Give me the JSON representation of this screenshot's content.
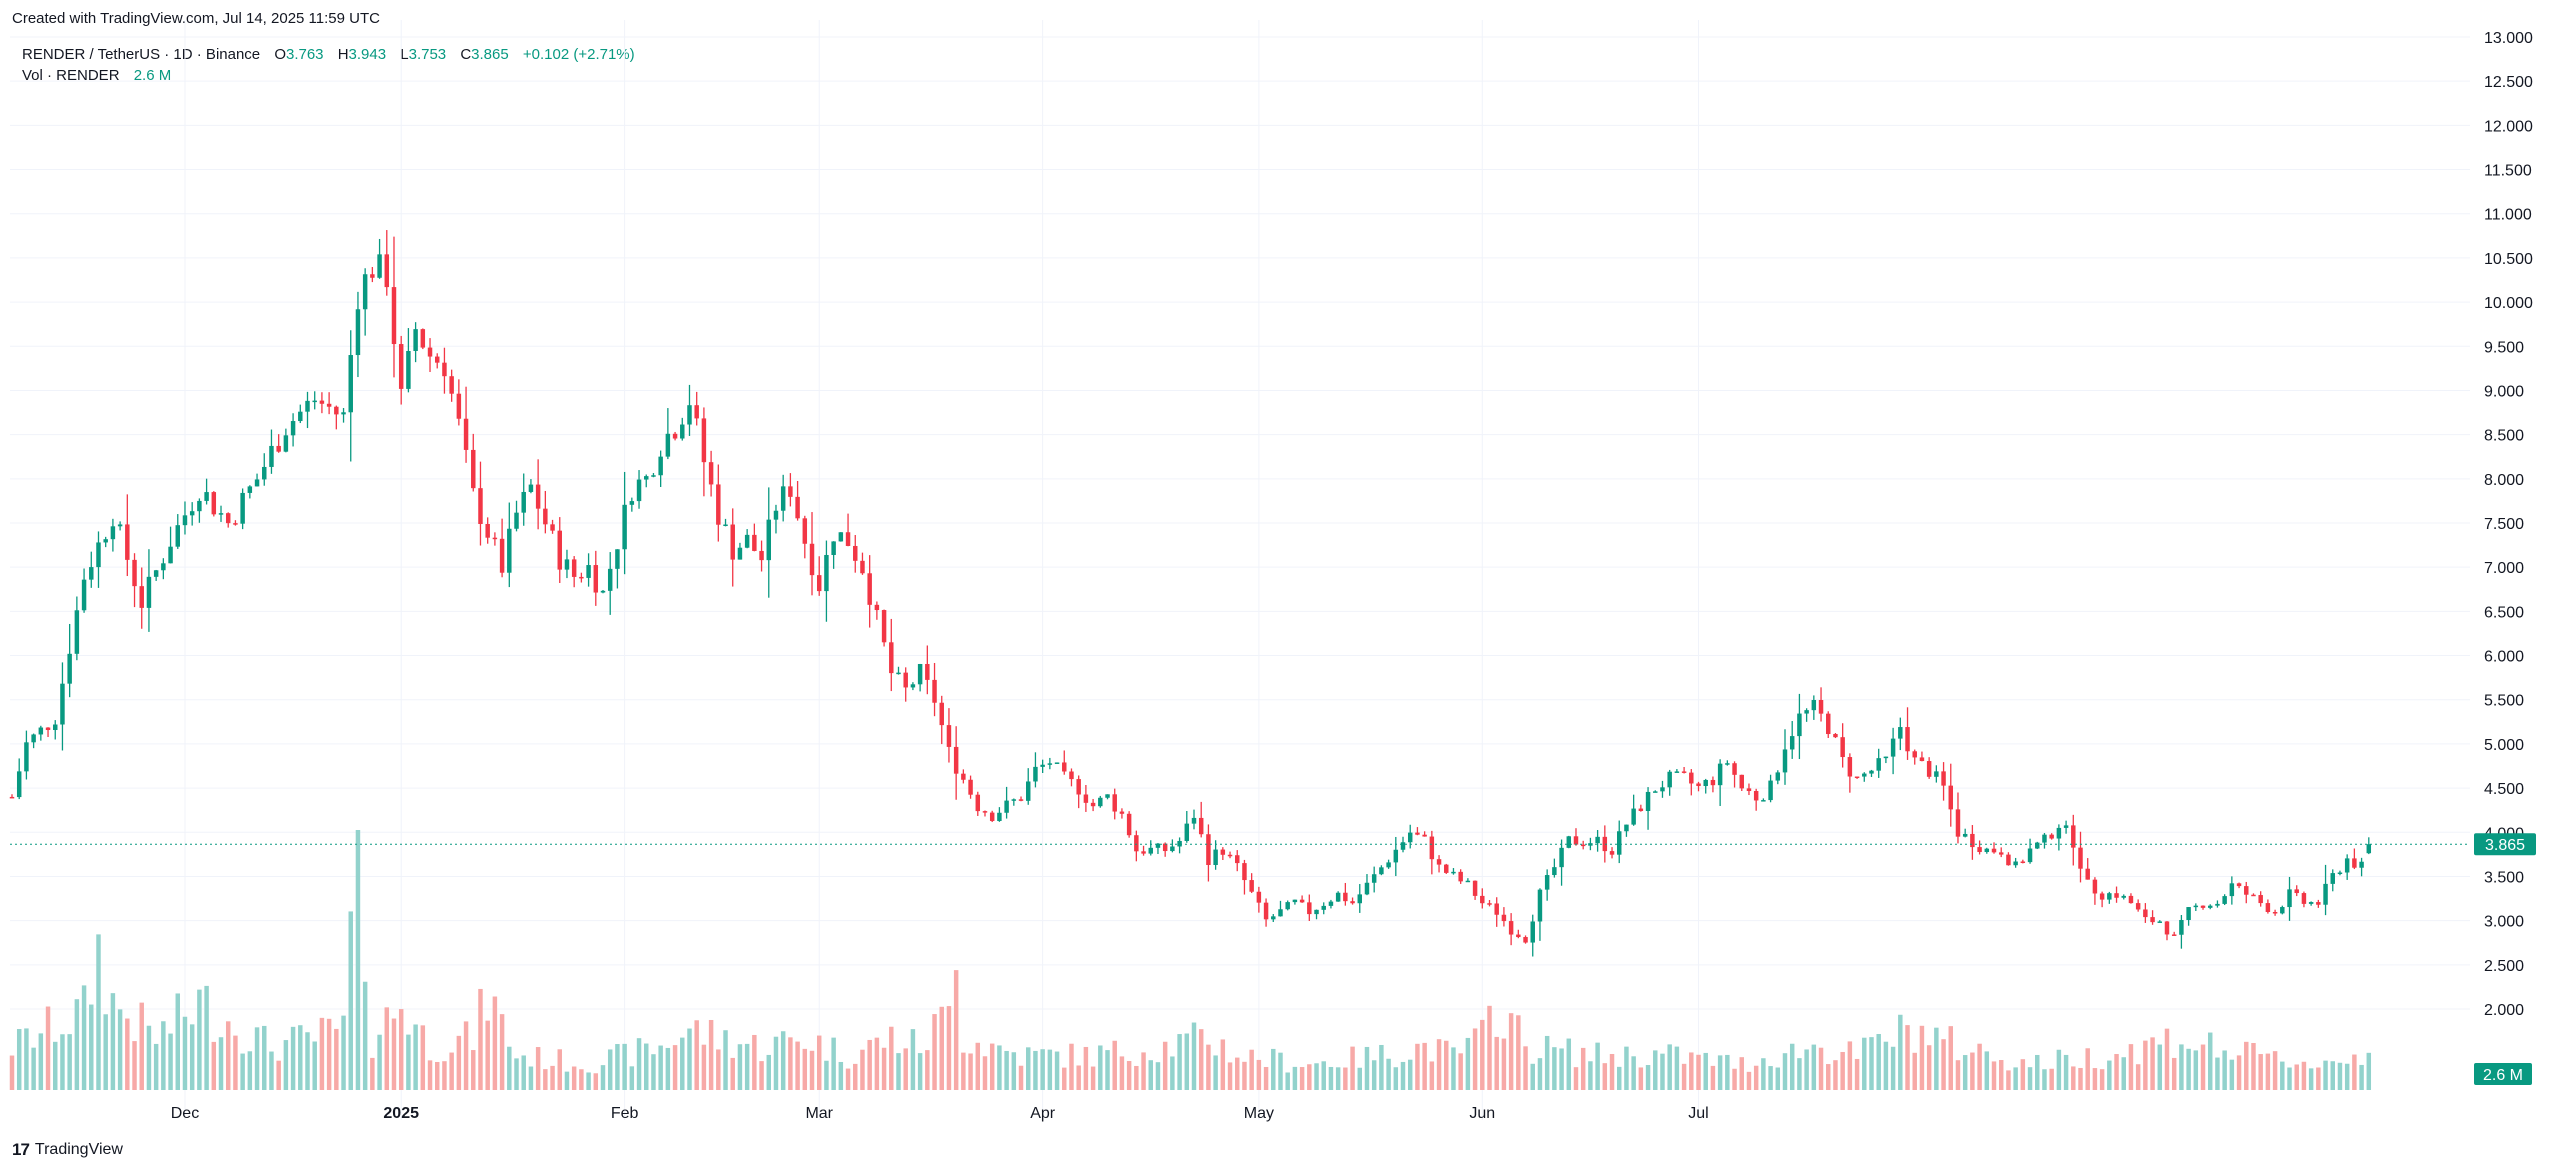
{
  "header": {
    "created_text": "Created with TradingView.com, Jul 14, 2025 11:59 UTC"
  },
  "legend": {
    "symbol": "RENDER / TetherUS · 1D · Binance",
    "o_label": "O",
    "o_value": "3.763",
    "h_label": "H",
    "h_value": "3.943",
    "l_label": "L",
    "l_value": "3.753",
    "c_label": "C",
    "c_value": "3.865",
    "change": "+0.102 (+2.71%)",
    "vol_label": "Vol · RENDER",
    "vol_value": "2.6 M"
  },
  "footer": {
    "brand": "TradingView"
  },
  "colors": {
    "up": "#089981",
    "down": "#f23645",
    "vol_up": "#92d2cc",
    "vol_down": "#f7a9a7",
    "grid": "#f0f3fa"
  },
  "chart_data": {
    "type": "candlestick",
    "x_tick_labels": [
      "Dec",
      "2025",
      "Feb",
      "Mar",
      "Apr",
      "May",
      "Jun",
      "Jul"
    ],
    "y_tick_labels": [
      "13.000",
      "12.500",
      "12.000",
      "11.500",
      "11.000",
      "10.500",
      "10.000",
      "9.500",
      "9.000",
      "8.500",
      "8.000",
      "7.500",
      "7.000",
      "6.500",
      "6.000",
      "5.500",
      "5.000",
      "4.500",
      "4.000",
      "3.500",
      "3.000",
      "2.500",
      "2.000"
    ],
    "ylim": [
      1.6,
      13.0
    ],
    "last_price_label": "3.865",
    "last_volume_label": "2.6 M",
    "close_path": [
      [
        0,
        4.4
      ],
      [
        2,
        5.0
      ],
      [
        6,
        5.3
      ],
      [
        10,
        6.9
      ],
      [
        14,
        7.6
      ],
      [
        18,
        6.6
      ],
      [
        22,
        7.3
      ],
      [
        26,
        7.9
      ],
      [
        30,
        7.5
      ],
      [
        34,
        8.0
      ],
      [
        38,
        8.6
      ],
      [
        42,
        8.9
      ],
      [
        46,
        8.7
      ],
      [
        48,
        10.1
      ],
      [
        50,
        10.4
      ],
      [
        52,
        10.3
      ],
      [
        54,
        8.9
      ],
      [
        56,
        9.7
      ],
      [
        58,
        9.4
      ],
      [
        60,
        9.3
      ],
      [
        62,
        8.6
      ],
      [
        64,
        7.8
      ],
      [
        66,
        7.4
      ],
      [
        68,
        7.0
      ],
      [
        70,
        7.6
      ],
      [
        72,
        7.9
      ],
      [
        74,
        7.5
      ],
      [
        76,
        7.1
      ],
      [
        78,
        6.9
      ],
      [
        80,
        7.0
      ],
      [
        82,
        6.7
      ],
      [
        86,
        7.9
      ],
      [
        88,
        8.0
      ],
      [
        90,
        8.4
      ],
      [
        92,
        8.6
      ],
      [
        94,
        8.9
      ],
      [
        96,
        8.2
      ],
      [
        98,
        7.6
      ],
      [
        100,
        7.2
      ],
      [
        102,
        7.3
      ],
      [
        104,
        7.1
      ],
      [
        106,
        7.7
      ],
      [
        108,
        7.9
      ],
      [
        110,
        7.3
      ],
      [
        112,
        6.8
      ],
      [
        114,
        7.4
      ],
      [
        116,
        7.3
      ],
      [
        118,
        7.0
      ],
      [
        120,
        6.4
      ],
      [
        122,
        5.8
      ],
      [
        124,
        5.6
      ],
      [
        126,
        5.8
      ],
      [
        128,
        5.5
      ],
      [
        130,
        4.9
      ],
      [
        132,
        4.6
      ],
      [
        134,
        4.3
      ],
      [
        136,
        4.2
      ],
      [
        138,
        4.3
      ],
      [
        140,
        4.4
      ],
      [
        142,
        4.7
      ],
      [
        144,
        4.8
      ],
      [
        146,
        4.6
      ],
      [
        148,
        4.5
      ],
      [
        150,
        4.3
      ],
      [
        152,
        4.4
      ],
      [
        154,
        4.2
      ],
      [
        156,
        3.8
      ],
      [
        158,
        3.8
      ],
      [
        160,
        3.8
      ],
      [
        162,
        3.9
      ],
      [
        164,
        4.2
      ],
      [
        166,
        3.7
      ],
      [
        168,
        3.8
      ],
      [
        170,
        3.6
      ],
      [
        172,
        3.3
      ],
      [
        174,
        3.0
      ],
      [
        176,
        3.1
      ],
      [
        178,
        3.2
      ],
      [
        180,
        3.1
      ],
      [
        182,
        3.2
      ],
      [
        184,
        3.3
      ],
      [
        186,
        3.2
      ],
      [
        188,
        3.4
      ],
      [
        190,
        3.6
      ],
      [
        192,
        3.8
      ],
      [
        194,
        4.0
      ],
      [
        196,
        3.9
      ],
      [
        198,
        3.6
      ],
      [
        200,
        3.5
      ],
      [
        202,
        3.4
      ],
      [
        204,
        3.2
      ],
      [
        206,
        3.1
      ],
      [
        208,
        2.9
      ],
      [
        210,
        2.8
      ],
      [
        212,
        3.3
      ],
      [
        214,
        3.6
      ],
      [
        216,
        3.9
      ],
      [
        218,
        3.9
      ],
      [
        220,
        3.9
      ],
      [
        222,
        3.8
      ],
      [
        224,
        4.1
      ],
      [
        226,
        4.3
      ],
      [
        228,
        4.5
      ],
      [
        230,
        4.6
      ],
      [
        232,
        4.6
      ],
      [
        234,
        4.5
      ],
      [
        236,
        4.6
      ],
      [
        238,
        4.8
      ],
      [
        240,
        4.5
      ],
      [
        242,
        4.4
      ],
      [
        244,
        4.5
      ],
      [
        246,
        5.0
      ],
      [
        248,
        5.3
      ],
      [
        250,
        5.4
      ],
      [
        252,
        5.2
      ],
      [
        254,
        4.8
      ],
      [
        256,
        4.6
      ],
      [
        258,
        4.7
      ],
      [
        260,
        4.8
      ],
      [
        262,
        5.2
      ],
      [
        264,
        4.8
      ],
      [
        266,
        4.7
      ],
      [
        268,
        4.5
      ],
      [
        270,
        4.0
      ],
      [
        272,
        3.9
      ],
      [
        274,
        3.8
      ],
      [
        276,
        3.8
      ],
      [
        278,
        3.6
      ],
      [
        280,
        3.8
      ],
      [
        282,
        3.9
      ],
      [
        284,
        4.1
      ],
      [
        286,
        3.9
      ],
      [
        288,
        3.4
      ],
      [
        290,
        3.3
      ],
      [
        292,
        3.3
      ],
      [
        294,
        3.2
      ],
      [
        296,
        3.0
      ],
      [
        298,
        3.0
      ],
      [
        300,
        2.8
      ],
      [
        302,
        3.1
      ],
      [
        304,
        3.2
      ],
      [
        306,
        3.2
      ],
      [
        308,
        3.4
      ],
      [
        310,
        3.3
      ],
      [
        312,
        3.2
      ],
      [
        314,
        3.1
      ],
      [
        316,
        3.3
      ],
      [
        318,
        3.2
      ],
      [
        320,
        3.2
      ],
      [
        322,
        3.5
      ],
      [
        324,
        3.7
      ],
      [
        326,
        3.6
      ],
      [
        327,
        3.865
      ]
    ],
    "volume_path": [
      [
        0,
        0.5
      ],
      [
        10,
        0.9
      ],
      [
        12,
        1.6
      ],
      [
        14,
        1.0
      ],
      [
        20,
        0.6
      ],
      [
        26,
        1.0
      ],
      [
        30,
        0.8
      ],
      [
        36,
        0.5
      ],
      [
        42,
        0.6
      ],
      [
        46,
        0.7
      ],
      [
        48,
        2.8
      ],
      [
        50,
        0.6
      ],
      [
        54,
        1.0
      ],
      [
        58,
        0.5
      ],
      [
        64,
        0.6
      ],
      [
        66,
        1.1
      ],
      [
        70,
        0.4
      ],
      [
        80,
        0.3
      ],
      [
        90,
        0.5
      ],
      [
        94,
        0.7
      ],
      [
        98,
        0.6
      ],
      [
        104,
        0.5
      ],
      [
        110,
        0.6
      ],
      [
        116,
        0.4
      ],
      [
        122,
        0.6
      ],
      [
        126,
        0.5
      ],
      [
        130,
        0.9
      ],
      [
        131,
        2.0
      ],
      [
        132,
        0.6
      ],
      [
        140,
        0.4
      ],
      [
        150,
        0.4
      ],
      [
        160,
        0.5
      ],
      [
        166,
        0.6
      ],
      [
        170,
        0.4
      ],
      [
        180,
        0.3
      ],
      [
        190,
        0.4
      ],
      [
        196,
        0.5
      ],
      [
        200,
        0.4
      ],
      [
        204,
        0.6
      ],
      [
        206,
        1.0
      ],
      [
        208,
        0.8
      ],
      [
        210,
        0.5
      ],
      [
        220,
        0.4
      ],
      [
        230,
        0.4
      ],
      [
        240,
        0.3
      ],
      [
        250,
        0.5
      ],
      [
        256,
        0.4
      ],
      [
        260,
        0.6
      ],
      [
        264,
        0.7
      ],
      [
        270,
        0.5
      ],
      [
        280,
        0.3
      ],
      [
        290,
        0.4
      ],
      [
        296,
        0.5
      ],
      [
        300,
        0.6
      ],
      [
        310,
        0.4
      ],
      [
        320,
        0.3
      ],
      [
        326,
        0.4
      ],
      [
        327,
        0.35
      ]
    ]
  }
}
